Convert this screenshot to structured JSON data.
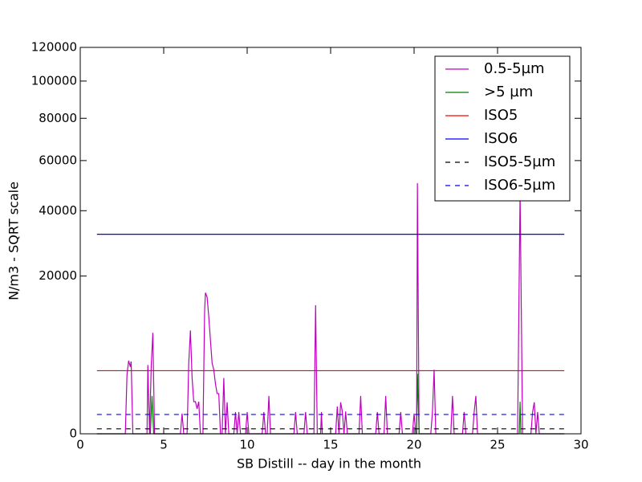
{
  "chart_data": {
    "type": "line",
    "xlabel": "SB Distill -- day in the month",
    "ylabel": "N/m3 - SQRT scale",
    "yscale": "sqrt",
    "xlim": [
      0,
      30
    ],
    "xticks": [
      0,
      5,
      10,
      15,
      20,
      25,
      30
    ],
    "ylim": [
      0,
      120000
    ],
    "yticks": [
      0,
      20000,
      40000,
      60000,
      80000,
      100000,
      120000
    ],
    "grid": false,
    "legend": "upper right",
    "series": [
      {
        "name": "0.5-5µm",
        "color": "#bf00bf",
        "dash": false,
        "x": [
          1.0,
          2.7,
          2.8,
          2.9,
          3.0,
          3.05,
          3.15,
          4.0,
          4.05,
          4.15,
          4.25,
          4.35,
          4.45,
          6.0,
          6.1,
          6.2,
          6.4,
          6.5,
          6.6,
          6.7,
          6.8,
          6.9,
          7.0,
          7.1,
          7.2,
          7.35,
          7.45,
          7.5,
          7.6,
          7.7,
          7.8,
          7.9,
          8.0,
          8.1,
          8.2,
          8.3,
          8.4,
          8.5,
          8.6,
          8.7,
          8.8,
          8.9,
          9.2,
          9.3,
          9.4,
          9.5,
          9.6,
          9.9,
          10.0,
          10.1,
          10.9,
          11.0,
          11.1,
          11.2,
          11.3,
          11.4,
          12.8,
          12.9,
          13.0,
          13.4,
          13.5,
          13.6,
          14.0,
          14.1,
          14.2,
          14.4,
          14.45,
          14.5,
          15.3,
          15.4,
          15.5,
          15.6,
          15.7,
          15.8,
          15.9,
          16.0,
          16.7,
          16.8,
          16.9,
          17.7,
          17.8,
          17.9,
          18.2,
          18.3,
          18.4,
          19.1,
          19.2,
          19.3,
          19.9,
          20.0,
          20.1,
          20.15,
          20.2,
          20.3,
          21.0,
          21.1,
          21.2,
          21.3,
          22.2,
          22.3,
          22.4,
          22.9,
          23.0,
          23.1,
          23.5,
          23.6,
          23.7,
          23.8,
          26.2,
          26.35,
          26.5,
          27.0,
          27.1,
          27.2,
          27.3,
          27.4,
          27.5,
          29.0
        ],
        "values": [
          0,
          0,
          2800,
          4300,
          3600,
          4200,
          0,
          0,
          3800,
          0,
          3600,
          8200,
          0,
          0,
          330,
          0,
          0,
          4000,
          8600,
          2500,
          830,
          830,
          500,
          830,
          0,
          0,
          12000,
          16000,
          15000,
          11000,
          7000,
          4000,
          3300,
          2000,
          1300,
          1300,
          0,
          0,
          2500,
          0,
          800,
          0,
          0,
          380,
          0,
          380,
          0,
          0,
          380,
          0,
          0,
          380,
          0,
          0,
          1150,
          0,
          0,
          380,
          0,
          0,
          380,
          0,
          0,
          13300,
          0,
          0,
          380,
          0,
          0,
          600,
          0,
          800,
          400,
          0,
          400,
          0,
          0,
          1150,
          0,
          0,
          380,
          0,
          0,
          1150,
          0,
          0,
          380,
          0,
          0,
          330,
          0,
          0,
          50500,
          0,
          0,
          380,
          3300,
          0,
          0,
          1150,
          0,
          0,
          380,
          0,
          0,
          380,
          1150,
          0,
          0,
          46700,
          0,
          0,
          380,
          800,
          0,
          380,
          0,
          0
        ]
      },
      {
        "name": ">5 µm",
        "color": "#008000",
        "dash": false,
        "x": [
          1.0,
          4.2,
          4.3,
          4.4,
          20.15,
          20.2,
          20.3,
          26.3,
          26.35,
          26.4,
          29.0
        ],
        "values": [
          0,
          0,
          1150,
          0,
          0,
          2900,
          0,
          0,
          830,
          0,
          0
        ]
      },
      {
        "name": "ISO5",
        "color": "#ff0000",
        "dash": false,
        "x": [
          1,
          29
        ],
        "values": [
          3200,
          3200
        ]
      },
      {
        "name": "ISO6",
        "color": "#0000ff",
        "dash": false,
        "x": [
          1,
          29
        ],
        "values": [
          32000,
          32000
        ]
      },
      {
        "name": "ISO5-5µm",
        "color": "#000000",
        "dash": true,
        "x": [
          1,
          29
        ],
        "values": [
          20,
          20
        ]
      },
      {
        "name": "ISO6-5µm",
        "color": "#0000ff",
        "dash": true,
        "x": [
          1,
          29
        ],
        "values": [
          300,
          300
        ]
      }
    ]
  }
}
